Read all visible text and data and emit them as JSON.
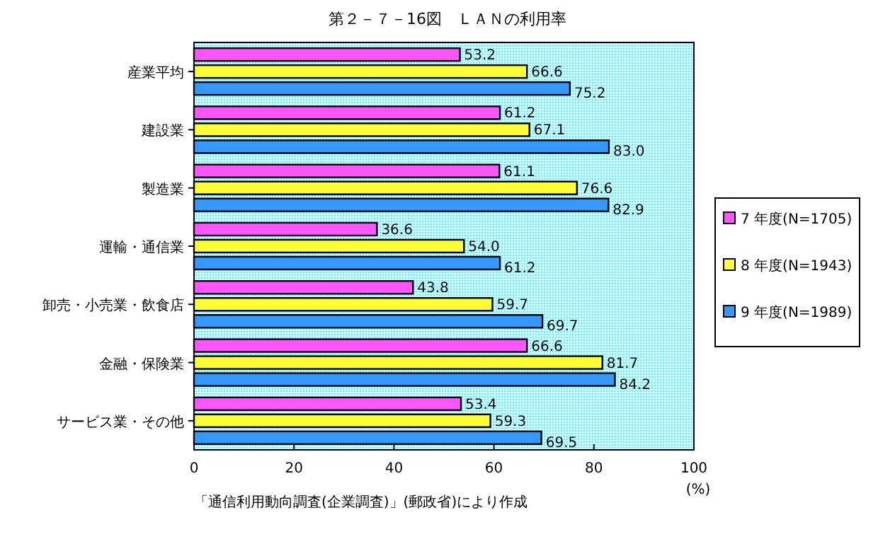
{
  "chart_data": {
    "type": "bar",
    "orientation": "horizontal",
    "title": "第２－７－16図　ＬＡＮの利用率",
    "xlabel": "(%)",
    "categories": [
      "産業平均",
      "建設業",
      "製造業",
      "運輸・通信業",
      "卸売・小売業・飲食店",
      "金融・保険業",
      "サービス業・その他"
    ],
    "series": [
      {
        "name": "7 年度(N=1705)",
        "color": "#ff55ff",
        "values": [
          53.2,
          61.2,
          61.1,
          36.6,
          43.8,
          66.6,
          53.4
        ],
        "value_labels": [
          "53.2",
          "61.2",
          "61.1",
          "36.6",
          "43.8",
          "66.6",
          "53.4"
        ]
      },
      {
        "name": "8 年度(N=1943)",
        "color": "#ffff33",
        "values": [
          66.6,
          67.1,
          76.6,
          54.0,
          59.7,
          81.7,
          59.3
        ],
        "value_labels": [
          "66.6",
          "67.1",
          "76.6",
          "54.0",
          "59.7",
          "81.7",
          "59.3"
        ]
      },
      {
        "name": "9 年度(N=1989)",
        "color": "#3399ff",
        "values": [
          75.2,
          83.0,
          82.9,
          61.2,
          69.7,
          84.2,
          69.5
        ],
        "value_labels": [
          "75.2",
          "83.0",
          "82.9",
          "61.2",
          "69.7",
          "84.2",
          "69.5"
        ]
      }
    ],
    "xlim": [
      0,
      100
    ],
    "xticks": [
      0,
      20,
      40,
      60,
      80,
      100
    ],
    "legend": "right",
    "annotations": [
      "「通信利用動向調査(企業調査)」(郵政省)により作成"
    ]
  }
}
